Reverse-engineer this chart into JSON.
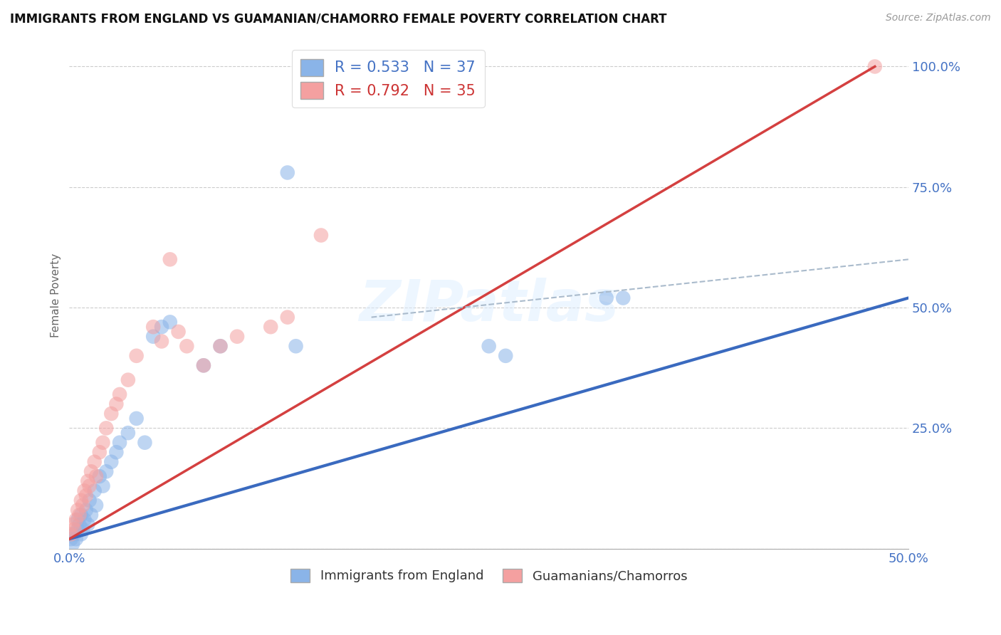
{
  "title": "IMMIGRANTS FROM ENGLAND VS GUAMANIAN/CHAMORRO FEMALE POVERTY CORRELATION CHART",
  "source_text": "Source: ZipAtlas.com",
  "ylabel": "Female Poverty",
  "xlim": [
    0.0,
    0.5
  ],
  "ylim": [
    0.0,
    1.05
  ],
  "xtick_positions": [
    0.0,
    0.05,
    0.1,
    0.15,
    0.2,
    0.25,
    0.3,
    0.35,
    0.4,
    0.45,
    0.5
  ],
  "xtick_labels": [
    "0.0%",
    "",
    "",
    "",
    "",
    "",
    "",
    "",
    "",
    "",
    "50.0%"
  ],
  "ytick_positions": [
    0.0,
    0.25,
    0.5,
    0.75,
    1.0
  ],
  "ytick_labels": [
    "",
    "25.0%",
    "50.0%",
    "75.0%",
    "100.0%"
  ],
  "R_blue": 0.533,
  "N_blue": 37,
  "R_pink": 0.792,
  "N_pink": 35,
  "blue_color": "#8ab4e8",
  "pink_color": "#f4a0a0",
  "blue_line_color": "#3a6abf",
  "pink_line_color": "#d44040",
  "tick_label_color": "#4472c4",
  "watermark_text": "ZIPatlas",
  "legend_label_blue": "Immigrants from England",
  "legend_label_pink": "Guamanians/Chamorros",
  "blue_scatter_x": [
    0.001,
    0.002,
    0.003,
    0.004,
    0.005,
    0.005,
    0.006,
    0.007,
    0.007,
    0.008,
    0.009,
    0.01,
    0.011,
    0.012,
    0.013,
    0.015,
    0.016,
    0.018,
    0.02,
    0.022,
    0.025,
    0.028,
    0.03,
    0.035,
    0.04,
    0.045,
    0.05,
    0.055,
    0.06,
    0.08,
    0.09,
    0.13,
    0.135,
    0.25,
    0.26,
    0.32,
    0.33
  ],
  "blue_scatter_y": [
    0.02,
    0.01,
    0.03,
    0.02,
    0.04,
    0.06,
    0.05,
    0.03,
    0.07,
    0.04,
    0.06,
    0.08,
    0.05,
    0.1,
    0.07,
    0.12,
    0.09,
    0.15,
    0.13,
    0.16,
    0.18,
    0.2,
    0.22,
    0.24,
    0.27,
    0.22,
    0.44,
    0.46,
    0.47,
    0.38,
    0.42,
    0.78,
    0.42,
    0.42,
    0.4,
    0.52,
    0.52
  ],
  "pink_scatter_x": [
    0.001,
    0.002,
    0.003,
    0.004,
    0.005,
    0.006,
    0.007,
    0.008,
    0.009,
    0.01,
    0.011,
    0.012,
    0.013,
    0.015,
    0.016,
    0.018,
    0.02,
    0.022,
    0.025,
    0.028,
    0.03,
    0.035,
    0.04,
    0.05,
    0.055,
    0.06,
    0.065,
    0.07,
    0.08,
    0.09,
    0.1,
    0.12,
    0.13,
    0.15,
    0.48
  ],
  "pink_scatter_y": [
    0.03,
    0.05,
    0.04,
    0.06,
    0.08,
    0.07,
    0.1,
    0.09,
    0.12,
    0.11,
    0.14,
    0.13,
    0.16,
    0.18,
    0.15,
    0.2,
    0.22,
    0.25,
    0.28,
    0.3,
    0.32,
    0.35,
    0.4,
    0.46,
    0.43,
    0.6,
    0.45,
    0.42,
    0.38,
    0.42,
    0.44,
    0.46,
    0.48,
    0.65,
    1.0
  ],
  "blue_line_x": [
    0.0,
    0.5
  ],
  "blue_line_y": [
    0.02,
    0.52
  ],
  "pink_line_x": [
    0.0,
    0.48
  ],
  "pink_line_y": [
    0.02,
    1.0
  ],
  "dash_line_x": [
    0.18,
    0.5
  ],
  "dash_line_y": [
    0.48,
    0.6
  ]
}
